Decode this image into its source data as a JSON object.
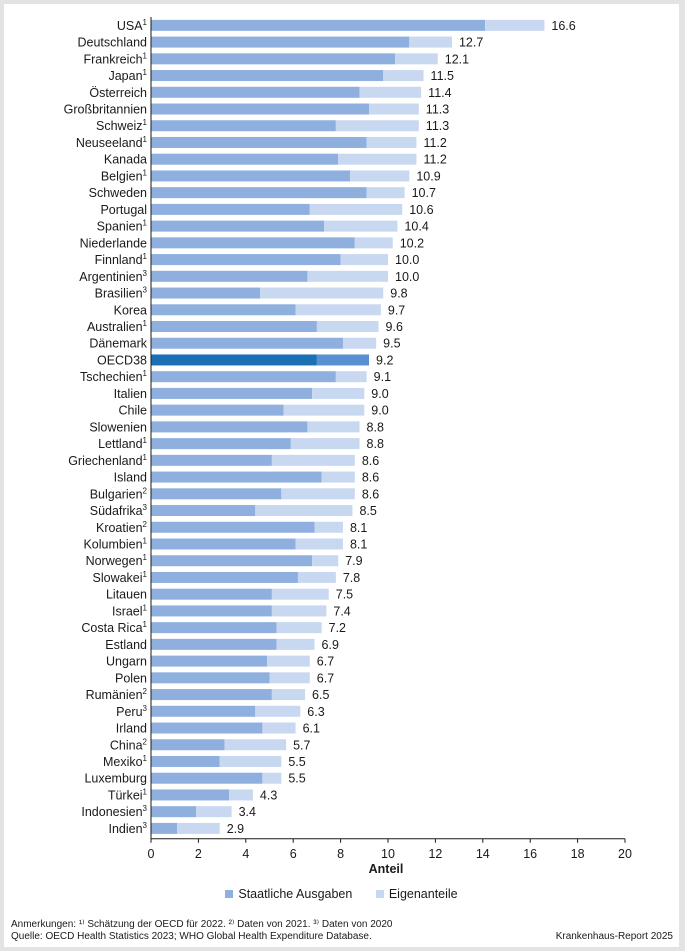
{
  "chart_data": {
    "type": "bar",
    "orientation": "horizontal",
    "stacked": true,
    "xlabel": "Anteil",
    "xlim": [
      0,
      20
    ],
    "xticks": [
      0,
      2,
      4,
      6,
      8,
      10,
      12,
      14,
      16,
      18,
      20
    ],
    "colors": {
      "public": "#8fb0df",
      "private": "#c9d8f1",
      "highlight_public": "#1b6fb5",
      "highlight_private": "#5b8fd3"
    },
    "legend": [
      {
        "name": "Staatliche Ausgaben",
        "color": "#8fb0df"
      },
      {
        "name": "Eigenanteile",
        "color": "#c9d8f1"
      }
    ],
    "categories": [
      {
        "name": "USA",
        "sup": "1",
        "public": 14.1,
        "total": 16.6,
        "label": "16.6"
      },
      {
        "name": "Deutschland",
        "sup": "",
        "public": 10.9,
        "total": 12.7,
        "label": "12.7"
      },
      {
        "name": "Frankreich",
        "sup": "1",
        "public": 10.3,
        "total": 12.1,
        "label": "12.1"
      },
      {
        "name": "Japan",
        "sup": "1",
        "public": 9.8,
        "total": 11.5,
        "label": "11.5"
      },
      {
        "name": "Österreich",
        "sup": "",
        "public": 8.8,
        "total": 11.4,
        "label": "11.4"
      },
      {
        "name": "Großbritannien",
        "sup": "",
        "public": 9.2,
        "total": 11.3,
        "label": "11.3"
      },
      {
        "name": "Schweiz",
        "sup": "1",
        "public": 7.8,
        "total": 11.3,
        "label": "11.3"
      },
      {
        "name": "Neuseeland",
        "sup": "1",
        "public": 9.1,
        "total": 11.2,
        "label": "11.2"
      },
      {
        "name": "Kanada",
        "sup": "",
        "public": 7.9,
        "total": 11.2,
        "label": "11.2"
      },
      {
        "name": "Belgien",
        "sup": "1",
        "public": 8.4,
        "total": 10.9,
        "label": "10.9"
      },
      {
        "name": "Schweden",
        "sup": "",
        "public": 9.1,
        "total": 10.7,
        "label": "10.7"
      },
      {
        "name": "Portugal",
        "sup": "",
        "public": 6.7,
        "total": 10.6,
        "label": "10.6"
      },
      {
        "name": "Spanien",
        "sup": "1",
        "public": 7.3,
        "total": 10.4,
        "label": "10.4"
      },
      {
        "name": "Niederlande",
        "sup": "",
        "public": 8.6,
        "total": 10.2,
        "label": "10.2"
      },
      {
        "name": "Finnland",
        "sup": "1",
        "public": 8.0,
        "total": 10.0,
        "label": "10.0"
      },
      {
        "name": "Argentinien",
        "sup": "3",
        "public": 6.6,
        "total": 10.0,
        "label": "10.0"
      },
      {
        "name": "Brasilien",
        "sup": "3",
        "public": 4.6,
        "total": 9.8,
        "label": "9.8"
      },
      {
        "name": "Korea",
        "sup": "",
        "public": 6.1,
        "total": 9.7,
        "label": "9.7"
      },
      {
        "name": "Australien",
        "sup": "1",
        "public": 7.0,
        "total": 9.6,
        "label": "9.6"
      },
      {
        "name": "Dänemark",
        "sup": "",
        "public": 8.1,
        "total": 9.5,
        "label": "9.5"
      },
      {
        "name": "OECD38",
        "sup": "",
        "public": 7.0,
        "total": 9.2,
        "label": "9.2",
        "highlight": true
      },
      {
        "name": "Tschechien",
        "sup": "1",
        "public": 7.8,
        "total": 9.1,
        "label": "9.1"
      },
      {
        "name": "Italien",
        "sup": "",
        "public": 6.8,
        "total": 9.0,
        "label": "9.0"
      },
      {
        "name": "Chile",
        "sup": "",
        "public": 5.6,
        "total": 9.0,
        "label": "9.0"
      },
      {
        "name": "Slowenien",
        "sup": "",
        "public": 6.6,
        "total": 8.8,
        "label": "8.8"
      },
      {
        "name": "Lettland",
        "sup": "1",
        "public": 5.9,
        "total": 8.8,
        "label": "8.8"
      },
      {
        "name": "Griechenland",
        "sup": "1",
        "public": 5.1,
        "total": 8.6,
        "label": "8.6"
      },
      {
        "name": "Island",
        "sup": "",
        "public": 7.2,
        "total": 8.6,
        "label": "8.6"
      },
      {
        "name": "Bulgarien",
        "sup": "2",
        "public": 5.5,
        "total": 8.6,
        "label": "8.6"
      },
      {
        "name": "Südafrika",
        "sup": "3",
        "public": 4.4,
        "total": 8.5,
        "label": "8.5"
      },
      {
        "name": "Kroatien",
        "sup": "2",
        "public": 6.9,
        "total": 8.1,
        "label": "8.1"
      },
      {
        "name": "Kolumbien",
        "sup": "1",
        "public": 6.1,
        "total": 8.1,
        "label": "8.1"
      },
      {
        "name": "Norwegen",
        "sup": "1",
        "public": 6.8,
        "total": 7.9,
        "label": "7.9"
      },
      {
        "name": "Slowakei",
        "sup": "1",
        "public": 6.2,
        "total": 7.8,
        "label": "7.8"
      },
      {
        "name": "Litauen",
        "sup": "",
        "public": 5.1,
        "total": 7.5,
        "label": "7.5"
      },
      {
        "name": "Israel",
        "sup": "1",
        "public": 5.1,
        "total": 7.4,
        "label": "7.4"
      },
      {
        "name": "Costa Rica",
        "sup": "1",
        "public": 5.3,
        "total": 7.2,
        "label": "7.2"
      },
      {
        "name": "Estland",
        "sup": "",
        "public": 5.3,
        "total": 6.9,
        "label": "6.9"
      },
      {
        "name": "Ungarn",
        "sup": "",
        "public": 4.9,
        "total": 6.7,
        "label": "6.7"
      },
      {
        "name": "Polen",
        "sup": "",
        "public": 5.0,
        "total": 6.7,
        "label": "6.7"
      },
      {
        "name": "Rumänien",
        "sup": "2",
        "public": 5.1,
        "total": 6.5,
        "label": "6.5"
      },
      {
        "name": "Peru",
        "sup": "3",
        "public": 4.4,
        "total": 6.3,
        "label": "6.3"
      },
      {
        "name": "Irland",
        "sup": "",
        "public": 4.7,
        "total": 6.1,
        "label": "6.1"
      },
      {
        "name": "China",
        "sup": "2",
        "public": 3.1,
        "total": 5.7,
        "label": "5.7"
      },
      {
        "name": "Mexiko",
        "sup": "1",
        "public": 2.9,
        "total": 5.5,
        "label": "5.5"
      },
      {
        "name": "Luxemburg",
        "sup": "",
        "public": 4.7,
        "total": 5.5,
        "label": "5.5"
      },
      {
        "name": "Türkei",
        "sup": "1",
        "public": 3.3,
        "total": 4.3,
        "label": "4.3"
      },
      {
        "name": "Indonesien",
        "sup": "3",
        "public": 1.9,
        "total": 3.4,
        "label": "3.4"
      },
      {
        "name": "Indien",
        "sup": "3",
        "public": 1.1,
        "total": 2.9,
        "label": "2.9"
      }
    ]
  },
  "footnotes": {
    "notes": "Anmerkungen: ¹⁾ Schätzung der OECD für 2022. ²⁾ Daten von 2021. ³⁾ Daten von 2020",
    "source": "Quelle: OECD Health Statistics 2023; WHO Global Health Expenditure Database.",
    "report": "Krankenhaus-Report 2025"
  }
}
